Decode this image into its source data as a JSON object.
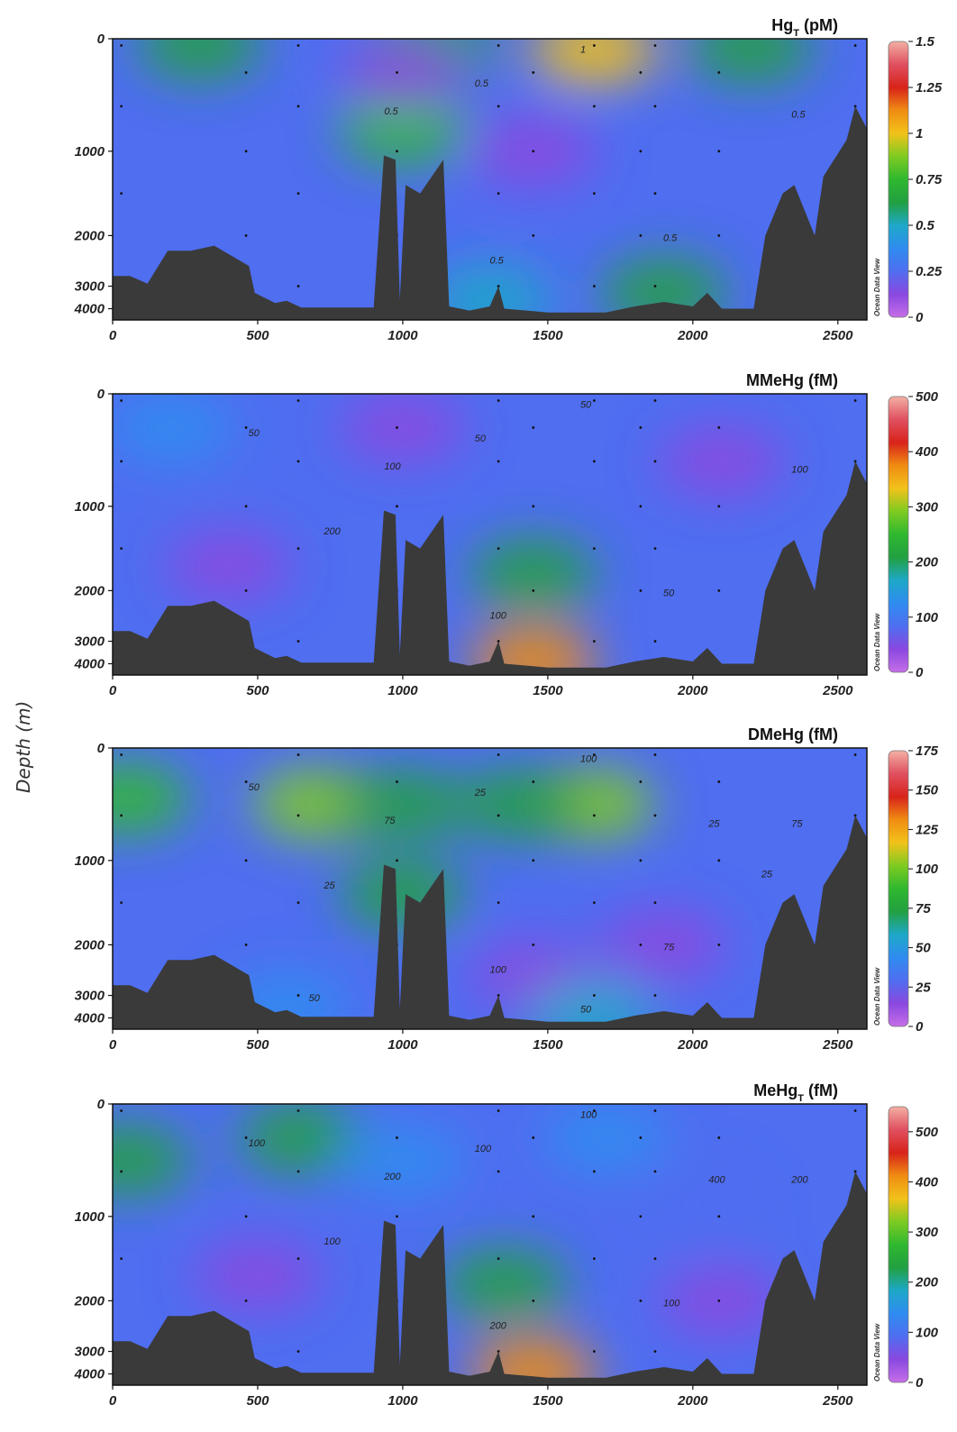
{
  "figure": {
    "ylabel": "Depth (m)",
    "watermark": "Ocean Data View"
  },
  "colors": {
    "scale": [
      "#c66ee8",
      "#8a48e0",
      "#4f6ef0",
      "#2f8cf0",
      "#1ea8c8",
      "#22a040",
      "#2fb82f",
      "#7ecb21",
      "#f2c21a",
      "#f08c12",
      "#d8231a",
      "#e05060",
      "#f3b0a4"
    ],
    "bathymetry": "#3a3a3a",
    "nodata": "#ffffff"
  },
  "chart_data": [
    {
      "type": "heatmap",
      "title": "Hg",
      "title_sub": "T",
      "title_unit": " (pM)",
      "x_ticks": [
        "0",
        "500",
        "1000",
        "1500",
        "2000",
        "2500"
      ],
      "x_tick_values": [
        0,
        500,
        1000,
        1500,
        2000,
        2500
      ],
      "xlim": [
        0,
        2600
      ],
      "y_ticks": [
        "0",
        "1000",
        "2000",
        "3000",
        "4000"
      ],
      "colorbar_ticks": [
        "1.5",
        "1.25",
        "1",
        "0.75",
        "0.5",
        "0.25",
        "0"
      ],
      "colorbar_range": [
        0,
        1.5
      ],
      "contour_labels": [
        "0.5",
        "0.5",
        "0.5",
        "0.5",
        "0.5",
        "1"
      ],
      "background_level": 0.3,
      "blobs": [
        {
          "x": 1000,
          "depth": 800,
          "value": 0.7
        },
        {
          "x": 1660,
          "depth": 100,
          "value": 1.0
        },
        {
          "x": 300,
          "depth": 50,
          "value": 0.65
        },
        {
          "x": 1100,
          "depth": 50,
          "value": 0.62
        },
        {
          "x": 2200,
          "depth": 80,
          "value": 0.6
        },
        {
          "x": 1450,
          "depth": 1000,
          "value": 0.18
        },
        {
          "x": 1000,
          "depth": 300,
          "value": 0.15
        },
        {
          "x": 1900,
          "depth": 3300,
          "value": 0.6
        },
        {
          "x": 1300,
          "depth": 3600,
          "value": 0.55
        }
      ]
    },
    {
      "type": "heatmap",
      "title": "MMeHg",
      "title_sub": "",
      "title_unit": " (fM)",
      "x_ticks": [
        "0",
        "500",
        "1000",
        "1500",
        "2000",
        "2500"
      ],
      "x_tick_values": [
        0,
        500,
        1000,
        1500,
        2000,
        2500
      ],
      "xlim": [
        0,
        2600
      ],
      "y_ticks": [
        "0",
        "1000",
        "2000",
        "3000",
        "4000"
      ],
      "colorbar_ticks": [
        "500",
        "400",
        "300",
        "200",
        "100",
        "0"
      ],
      "colorbar_range": [
        0,
        500
      ],
      "contour_labels": [
        "50",
        "100",
        "100",
        "50",
        "100",
        "50",
        "50",
        "200"
      ],
      "background_level": 80,
      "blobs": [
        {
          "x": 1450,
          "depth": 1800,
          "value": 210
        },
        {
          "x": 1450,
          "depth": 3900,
          "value": 380
        },
        {
          "x": 200,
          "depth": 300,
          "value": 120
        },
        {
          "x": 400,
          "depth": 1700,
          "value": 40
        },
        {
          "x": 2100,
          "depth": 600,
          "value": 40
        },
        {
          "x": 1000,
          "depth": 300,
          "value": 60
        }
      ]
    },
    {
      "type": "heatmap",
      "title": "DMeHg",
      "title_sub": "",
      "title_unit": " (fM)",
      "x_ticks": [
        "0",
        "500",
        "1000",
        "1500",
        "2000",
        "2500"
      ],
      "x_tick_values": [
        0,
        500,
        1000,
        1500,
        2000,
        2500
      ],
      "xlim": [
        0,
        2600
      ],
      "y_ticks": [
        "0",
        "1000",
        "2000",
        "3000",
        "4000"
      ],
      "colorbar_ticks": [
        "175",
        "150",
        "125",
        "100",
        "75",
        "50",
        "25",
        "0"
      ],
      "colorbar_range": [
        0,
        175
      ],
      "contour_labels": [
        "25",
        "75",
        "100",
        "75",
        "75",
        "100",
        "50",
        "25",
        "25",
        "25",
        "50",
        "50"
      ],
      "background_level": 30,
      "blobs": [
        {
          "x": 700,
          "depth": 500,
          "value": 105
        },
        {
          "x": 1650,
          "depth": 500,
          "value": 100
        },
        {
          "x": 50,
          "depth": 450,
          "value": 85
        },
        {
          "x": 1000,
          "depth": 500,
          "value": 80
        },
        {
          "x": 1400,
          "depth": 500,
          "value": 80
        },
        {
          "x": 1000,
          "depth": 1400,
          "value": 70
        },
        {
          "x": 1900,
          "depth": 2000,
          "value": 12
        },
        {
          "x": 1450,
          "depth": 2600,
          "value": 15
        },
        {
          "x": 1650,
          "depth": 3900,
          "value": 55
        },
        {
          "x": 600,
          "depth": 3500,
          "value": 48
        }
      ]
    },
    {
      "type": "heatmap",
      "title": "MeHg",
      "title_sub": "T",
      "title_unit": " (fM)",
      "x_ticks": [
        "0",
        "500",
        "1000",
        "1500",
        "2000",
        "2500"
      ],
      "x_tick_values": [
        0,
        500,
        1000,
        1500,
        2000,
        2500
      ],
      "xlim": [
        0,
        2600
      ],
      "y_ticks": [
        "0",
        "1000",
        "2000",
        "3000",
        "4000"
      ],
      "colorbar_ticks": [
        "500",
        "400",
        "300",
        "200",
        "100",
        "0"
      ],
      "colorbar_range": [
        0,
        550
      ],
      "contour_labels": [
        "100",
        "200",
        "200",
        "100",
        "200",
        "100",
        "100",
        "100",
        "400"
      ],
      "background_level": 100,
      "blobs": [
        {
          "x": 1350,
          "depth": 1800,
          "value": 230
        },
        {
          "x": 1450,
          "depth": 3950,
          "value": 420
        },
        {
          "x": 650,
          "depth": 300,
          "value": 230
        },
        {
          "x": 50,
          "depth": 500,
          "value": 220
        },
        {
          "x": 1700,
          "depth": 300,
          "value": 160
        },
        {
          "x": 500,
          "depth": 1700,
          "value": 55
        },
        {
          "x": 2000,
          "depth": 900,
          "value": 70
        },
        {
          "x": 2100,
          "depth": 2000,
          "value": 60
        },
        {
          "x": 1000,
          "depth": 500,
          "value": 130
        }
      ]
    }
  ]
}
